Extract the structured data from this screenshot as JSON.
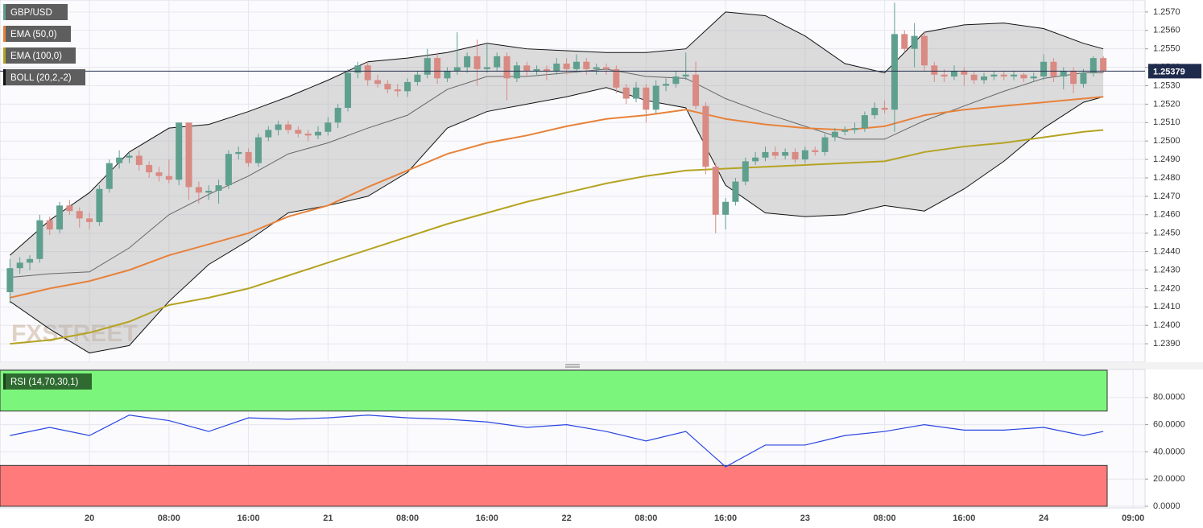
{
  "chart_data": [
    {
      "type": "candlestick",
      "name": "GBP/USD",
      "watermark": "FXSTREET",
      "up_color": "#5f9f8e",
      "down_color": "#d98a82",
      "x": [
        -8,
        -7,
        -6,
        -5,
        -4,
        -3,
        -2,
        -1,
        0,
        1,
        2,
        3,
        4,
        5,
        6,
        7,
        8,
        9,
        10,
        11,
        12,
        13,
        14,
        15,
        16,
        17,
        18,
        19,
        20,
        21,
        22,
        23,
        24,
        25,
        26,
        27,
        28,
        29,
        30,
        31,
        32,
        33,
        34,
        35,
        36,
        37,
        38,
        39,
        40,
        41,
        42,
        43,
        44,
        45,
        46,
        47,
        48,
        49,
        50,
        51,
        52,
        53,
        54,
        55,
        56,
        57,
        58,
        59,
        60,
        61,
        62,
        63,
        64,
        65,
        66,
        67,
        68,
        69,
        70,
        71,
        72,
        73,
        74,
        75,
        76,
        77,
        78,
        79,
        80,
        81,
        82,
        83,
        84,
        85,
        86,
        87,
        88,
        89,
        90,
        91,
        92,
        93,
        94,
        95,
        96,
        97,
        98,
        99,
        100,
        101,
        102
      ],
      "candles": [
        [
          1.2418,
          1.2436,
          1.2412,
          1.2431
        ],
        [
          1.2431,
          1.2437,
          1.2428,
          1.2434
        ],
        [
          1.2434,
          1.2438,
          1.243,
          1.2436
        ],
        [
          1.2436,
          1.246,
          1.2434,
          1.2457
        ],
        [
          1.2457,
          1.2459,
          1.2449,
          1.2452
        ],
        [
          1.2452,
          1.2467,
          1.245,
          1.2465
        ],
        [
          1.2465,
          1.2468,
          1.246,
          1.2462
        ],
        [
          1.2462,
          1.2464,
          1.2453,
          1.2458
        ],
        [
          1.2458,
          1.2461,
          1.2452,
          1.2456
        ],
        [
          1.2456,
          1.2476,
          1.2454,
          1.2474
        ],
        [
          1.2474,
          1.249,
          1.2472,
          1.2488
        ],
        [
          1.2488,
          1.2495,
          1.2485,
          1.2491
        ],
        [
          1.2491,
          1.2494,
          1.2488,
          1.2492
        ],
        [
          1.2492,
          1.2495,
          1.2484,
          1.2487
        ],
        [
          1.2487,
          1.2489,
          1.248,
          1.2483
        ],
        [
          1.2483,
          1.2486,
          1.2478,
          1.2481
        ],
        [
          1.2481,
          1.249,
          1.2477,
          1.2479
        ],
        [
          1.2479,
          1.251,
          1.2476,
          1.251
        ],
        [
          1.251,
          1.251,
          1.2468,
          1.2475
        ],
        [
          1.2475,
          1.2478,
          1.2466,
          1.2472
        ],
        [
          1.2472,
          1.2476,
          1.2468,
          1.2473
        ],
        [
          1.2473,
          1.2479,
          1.2466,
          1.2476
        ],
        [
          1.2476,
          1.2495,
          1.2474,
          1.2493
        ],
        [
          1.2493,
          1.2497,
          1.249,
          1.2494
        ],
        [
          1.2494,
          1.2496,
          1.2486,
          1.2488
        ],
        [
          1.2488,
          1.2504,
          1.2486,
          1.2502
        ],
        [
          1.2502,
          1.2508,
          1.25,
          1.2506
        ],
        [
          1.2506,
          1.2511,
          1.2503,
          1.2509
        ],
        [
          1.2509,
          1.2511,
          1.2504,
          1.2506
        ],
        [
          1.2506,
          1.2508,
          1.2502,
          1.2504
        ],
        [
          1.2504,
          1.2506,
          1.25,
          1.2503
        ],
        [
          1.2503,
          1.2508,
          1.2501,
          1.2505
        ],
        [
          1.2505,
          1.2513,
          1.2503,
          1.251
        ],
        [
          1.251,
          1.252,
          1.2507,
          1.2518
        ],
        [
          1.2518,
          1.2539,
          1.2516,
          1.2537
        ],
        [
          1.2537,
          1.2543,
          1.2534,
          1.2541
        ],
        [
          1.2541,
          1.2543,
          1.253,
          1.2533
        ],
        [
          1.2533,
          1.2536,
          1.2529,
          1.2531
        ],
        [
          1.2531,
          1.2533,
          1.2526,
          1.2528
        ],
        [
          1.2528,
          1.2531,
          1.2524,
          1.2527
        ],
        [
          1.2527,
          1.2534,
          1.2524,
          1.2532
        ],
        [
          1.2532,
          1.2538,
          1.253,
          1.2536
        ],
        [
          1.2536,
          1.255,
          1.2534,
          1.2545
        ],
        [
          1.2545,
          1.2548,
          1.2531,
          1.2534
        ],
        [
          1.2534,
          1.254,
          1.2532,
          1.2538
        ],
        [
          1.2538,
          1.2559,
          1.2536,
          1.254
        ],
        [
          1.254,
          1.2548,
          1.2537,
          1.2546
        ],
        [
          1.2546,
          1.2555,
          1.253,
          1.2539
        ],
        [
          1.2539,
          1.2553,
          1.2537,
          1.254
        ],
        [
          1.254,
          1.2548,
          1.2538,
          1.2546
        ],
        [
          1.2546,
          1.2548,
          1.2522,
          1.2534
        ],
        [
          1.2534,
          1.2543,
          1.2532,
          1.2541
        ],
        [
          1.2541,
          1.2543,
          1.2535,
          1.2538
        ],
        [
          1.2538,
          1.2541,
          1.2536,
          1.2539
        ],
        [
          1.2539,
          1.2541,
          1.2533,
          1.2538
        ],
        [
          1.2538,
          1.2545,
          1.2536,
          1.2542
        ],
        [
          1.2542,
          1.2545,
          1.2536,
          1.2539
        ],
        [
          1.2539,
          1.2547,
          1.2537,
          1.2543
        ],
        [
          1.2543,
          1.2545,
          1.2536,
          1.2539
        ],
        [
          1.2539,
          1.2542,
          1.2536,
          1.254
        ],
        [
          1.254,
          1.2542,
          1.2536,
          1.2539
        ],
        [
          1.2539,
          1.2541,
          1.2526,
          1.2529
        ],
        [
          1.2529,
          1.2531,
          1.252,
          1.2523
        ],
        [
          1.2523,
          1.2532,
          1.2521,
          1.2529
        ],
        [
          1.2529,
          1.2531,
          1.251,
          1.2517
        ],
        [
          1.2517,
          1.2533,
          1.2515,
          1.253
        ],
        [
          1.253,
          1.2534,
          1.2527,
          1.2531
        ],
        [
          1.2531,
          1.2538,
          1.2529,
          1.2535
        ],
        [
          1.2535,
          1.2548,
          1.2533,
          1.2536
        ],
        [
          1.2536,
          1.2543,
          1.2517,
          1.2519
        ],
        [
          1.2519,
          1.2521,
          1.2482,
          1.2486
        ],
        [
          1.2486,
          1.2488,
          1.245,
          1.246
        ],
        [
          1.246,
          1.2469,
          1.2452,
          1.2467
        ],
        [
          1.2467,
          1.248,
          1.2465,
          1.2478
        ],
        [
          1.2478,
          1.2491,
          1.2476,
          1.2489
        ],
        [
          1.2489,
          1.2494,
          1.2487,
          1.2491
        ],
        [
          1.2491,
          1.2497,
          1.2489,
          1.2494
        ],
        [
          1.2494,
          1.2497,
          1.249,
          1.2492
        ],
        [
          1.2492,
          1.2496,
          1.249,
          1.2494
        ],
        [
          1.2494,
          1.2496,
          1.2488,
          1.249
        ],
        [
          1.249,
          1.2497,
          1.2488,
          1.2495
        ],
        [
          1.2495,
          1.2497,
          1.2492,
          1.2494
        ],
        [
          1.2494,
          1.2504,
          1.2492,
          1.2502
        ],
        [
          1.2502,
          1.2507,
          1.25,
          1.2505
        ],
        [
          1.2505,
          1.2508,
          1.2503,
          1.2506
        ],
        [
          1.2506,
          1.251,
          1.2504,
          1.2507
        ],
        [
          1.2507,
          1.2516,
          1.2505,
          1.2514
        ],
        [
          1.2514,
          1.2521,
          1.2512,
          1.2518
        ],
        [
          1.2518,
          1.2522,
          1.2515,
          1.2517
        ],
        [
          1.2517,
          1.2575,
          1.2505,
          1.2558
        ],
        [
          1.2558,
          1.256,
          1.2548,
          1.255
        ],
        [
          1.255,
          1.2564,
          1.254,
          1.2557
        ],
        [
          1.2557,
          1.2559,
          1.2538,
          1.2541
        ],
        [
          1.2541,
          1.2543,
          1.2532,
          1.2536
        ],
        [
          1.2536,
          1.2539,
          1.2532,
          1.2535
        ],
        [
          1.2535,
          1.2541,
          1.2533,
          1.2538
        ],
        [
          1.2538,
          1.254,
          1.253,
          1.2536
        ],
        [
          1.2536,
          1.2538,
          1.2531,
          1.2533
        ],
        [
          1.2533,
          1.2537,
          1.2531,
          1.2535
        ],
        [
          1.2535,
          1.2538,
          1.2533,
          1.2536
        ],
        [
          1.2536,
          1.2538,
          1.2533,
          1.2535
        ],
        [
          1.2535,
          1.2538,
          1.2533,
          1.2536
        ],
        [
          1.2536,
          1.2537,
          1.2532,
          1.2534
        ],
        [
          1.2534,
          1.2537,
          1.2532,
          1.2535
        ],
        [
          1.2535,
          1.2547,
          1.2533,
          1.2543
        ],
        [
          1.2543,
          1.2545,
          1.2532,
          1.2535
        ],
        [
          1.2535,
          1.254,
          1.2528,
          1.2538
        ],
        [
          1.2538,
          1.254,
          1.2526,
          1.2531
        ],
        [
          1.2531,
          1.2539,
          1.2529,
          1.2537
        ],
        [
          1.2537,
          1.2546,
          1.2535,
          1.2545
        ],
        [
          1.2545,
          1.2546,
          1.2537,
          1.25379
        ]
      ],
      "last_price": 1.25379,
      "line_x": [
        -8,
        -4,
        0,
        4,
        8,
        12,
        16,
        20,
        24,
        28,
        32,
        36,
        40,
        44,
        48,
        52,
        56,
        60,
        64,
        68,
        72,
        76,
        80,
        84,
        88,
        92,
        96,
        100,
        102
      ],
      "indicators": [
        {
          "name": "EMA (50,0)",
          "color": "#e8823a",
          "values": [
            1.2415,
            1.242,
            1.2424,
            1.243,
            1.2438,
            1.2444,
            1.245,
            1.2459,
            1.2465,
            1.2475,
            1.2484,
            1.2493,
            1.2499,
            1.2503,
            1.2508,
            1.2512,
            1.2514,
            1.2517,
            1.2512,
            1.2509,
            1.2507,
            1.2506,
            1.2508,
            1.2514,
            1.2517,
            1.2519,
            1.2521,
            1.2523,
            1.2524
          ]
        },
        {
          "name": "EMA (100,0)",
          "color": "#b5a322",
          "values": [
            1.239,
            1.2392,
            1.2396,
            1.2402,
            1.2411,
            1.2415,
            1.242,
            1.2427,
            1.2434,
            1.2441,
            1.2448,
            1.2455,
            1.2461,
            1.2467,
            1.2472,
            1.2477,
            1.2481,
            1.2484,
            1.2485,
            1.2486,
            1.2487,
            1.2488,
            1.2489,
            1.2494,
            1.2497,
            1.2499,
            1.2502,
            1.2505,
            1.2506
          ]
        }
      ],
      "bollinger": {
        "name": "BOLL (20,2,-2)",
        "color": "#111111",
        "middle_color": "#666666",
        "fill": "#b4b4b4",
        "upper": [
          1.2438,
          1.2457,
          1.2472,
          1.2494,
          1.2507,
          1.2509,
          1.2516,
          1.2524,
          1.2533,
          1.2543,
          1.2545,
          1.2548,
          1.2553,
          1.255,
          1.2549,
          1.2548,
          1.2548,
          1.255,
          1.257,
          1.2568,
          1.2557,
          1.2542,
          1.2537,
          1.2559,
          1.2563,
          1.2564,
          1.2561,
          1.2553,
          1.255
        ],
        "middle": [
          1.2426,
          1.2428,
          1.2429,
          1.2442,
          1.246,
          1.2471,
          1.2481,
          1.2493,
          1.2499,
          1.2507,
          1.2514,
          1.2528,
          1.2535,
          1.2535,
          1.2537,
          1.2539,
          1.2535,
          1.2534,
          1.2523,
          1.2515,
          1.2508,
          1.2501,
          1.2501,
          1.2511,
          1.2519,
          1.2527,
          1.2534,
          1.2537,
          1.2537
        ],
        "lower": [
          1.2413,
          1.2398,
          1.2385,
          1.2389,
          1.2413,
          1.2433,
          1.2446,
          1.2461,
          1.2465,
          1.247,
          1.2483,
          1.2507,
          1.2516,
          1.252,
          1.2524,
          1.2529,
          1.2522,
          1.2518,
          1.2476,
          1.2461,
          1.2459,
          1.246,
          1.2465,
          1.2462,
          1.2474,
          1.2489,
          1.2507,
          1.2521,
          1.2524
        ]
      },
      "xlim": [
        -9,
        106.2
      ],
      "ylim": [
        1.238,
        1.25765
      ],
      "yticks": [
        {
          "value": 1.239,
          "label": "1.2390"
        },
        {
          "value": 1.24,
          "label": "1.2400"
        },
        {
          "value": 1.241,
          "label": "1.2410"
        },
        {
          "value": 1.242,
          "label": "1.2420"
        },
        {
          "value": 1.243,
          "label": "1.2430"
        },
        {
          "value": 1.244,
          "label": "1.2440"
        },
        {
          "value": 1.245,
          "label": "1.2450"
        },
        {
          "value": 1.246,
          "label": "1.2460"
        },
        {
          "value": 1.247,
          "label": "1.2470"
        },
        {
          "value": 1.248,
          "label": "1.2480"
        },
        {
          "value": 1.249,
          "label": "1.2490"
        },
        {
          "value": 1.25,
          "label": "1.2500"
        },
        {
          "value": 1.251,
          "label": "1.2510"
        },
        {
          "value": 1.252,
          "label": "1.2520"
        },
        {
          "value": 1.253,
          "label": "1.2530"
        },
        {
          "value": 1.254,
          "label": "1.2540"
        },
        {
          "value": 1.255,
          "label": "1.2550"
        },
        {
          "value": 1.256,
          "label": "1.2560"
        },
        {
          "value": 1.257,
          "label": "1.2570"
        }
      ],
      "xticks": [
        {
          "value": 0,
          "label": "20"
        },
        {
          "value": 8,
          "label": "08:00"
        },
        {
          "value": 16,
          "label": "16:00"
        },
        {
          "value": 24,
          "label": "21"
        },
        {
          "value": 32,
          "label": "08:00"
        },
        {
          "value": 40,
          "label": "16:00"
        },
        {
          "value": 48,
          "label": "22"
        },
        {
          "value": 56,
          "label": "08:00"
        },
        {
          "value": 64,
          "label": "16:00"
        },
        {
          "value": 72,
          "label": "23"
        },
        {
          "value": 80,
          "label": "08:00"
        },
        {
          "value": 88,
          "label": "16:00"
        },
        {
          "value": 96,
          "label": "24"
        },
        {
          "value": 105,
          "label": "09:00"
        }
      ],
      "grid": true
    },
    {
      "type": "line",
      "name": "RSI (14,70,30,1)",
      "color": "#2a45e0",
      "x": [
        -8,
        -4,
        0,
        4,
        8,
        12,
        16,
        20,
        24,
        28,
        32,
        36,
        40,
        44,
        48,
        52,
        56,
        60,
        64,
        68,
        72,
        76,
        80,
        84,
        88,
        92,
        96,
        100,
        102
      ],
      "values": [
        52,
        58,
        52,
        67,
        63,
        55,
        65,
        64,
        65,
        67,
        65,
        64,
        62,
        58,
        60,
        55,
        48,
        55,
        29,
        45,
        45,
        52,
        55,
        60,
        56,
        56,
        58,
        52,
        55
      ],
      "overbought": 70,
      "oversold": 30,
      "overbought_color": "#7cf57c",
      "oversold_color": "#ff7b7b",
      "ylim": [
        0,
        100
      ],
      "yticks": [
        {
          "value": 0,
          "label": "0.0000"
        },
        {
          "value": 20,
          "label": "20.0000"
        },
        {
          "value": 40,
          "label": "40.0000"
        },
        {
          "value": 60,
          "label": "60.0000"
        },
        {
          "value": 80,
          "label": "80.0000"
        }
      ]
    }
  ]
}
